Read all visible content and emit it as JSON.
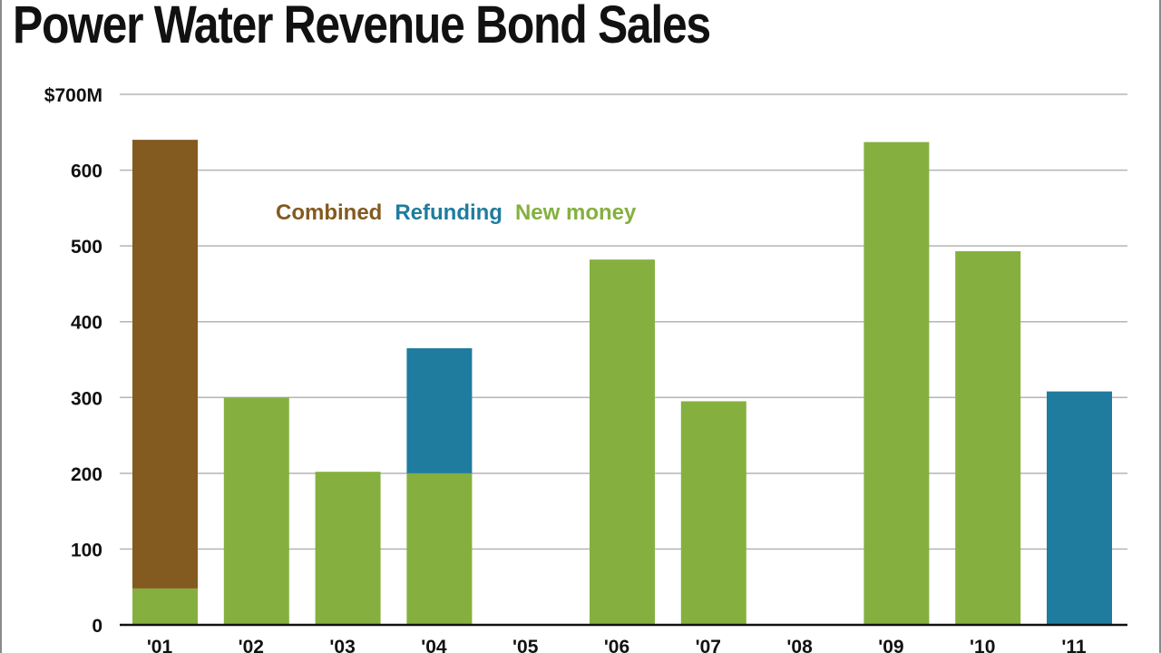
{
  "chart_data": {
    "type": "bar",
    "stacked": true,
    "title": "Power Water Revenue Bond Sales",
    "xlabel": "",
    "ylabel": "",
    "categories": [
      "'01",
      "'02",
      "'03",
      "'04",
      "'05",
      "'06",
      "'07",
      "'08",
      "'09",
      "'10",
      "'11"
    ],
    "ylim": [
      0,
      700
    ],
    "yticks": [
      0,
      100,
      200,
      300,
      400,
      500,
      600,
      700
    ],
    "ytick_labels": [
      "0",
      "100",
      "200",
      "300",
      "400",
      "500",
      "600",
      "$700M"
    ],
    "grid": true,
    "legend_position": "top-left",
    "series": [
      {
        "name": "New money",
        "color": "#85b03f",
        "values": [
          48,
          300,
          202,
          200,
          0,
          482,
          295,
          0,
          637,
          493,
          0
        ]
      },
      {
        "name": "Refunding",
        "color": "#1f7c9e",
        "values": [
          0,
          0,
          0,
          165,
          0,
          0,
          0,
          0,
          0,
          0,
          308
        ]
      },
      {
        "name": "Combined",
        "color": "#835a1f",
        "values": [
          592,
          0,
          0,
          0,
          0,
          0,
          0,
          0,
          0,
          0,
          0
        ]
      }
    ],
    "legend_order": [
      "Combined",
      "Refunding",
      "New money"
    ]
  }
}
